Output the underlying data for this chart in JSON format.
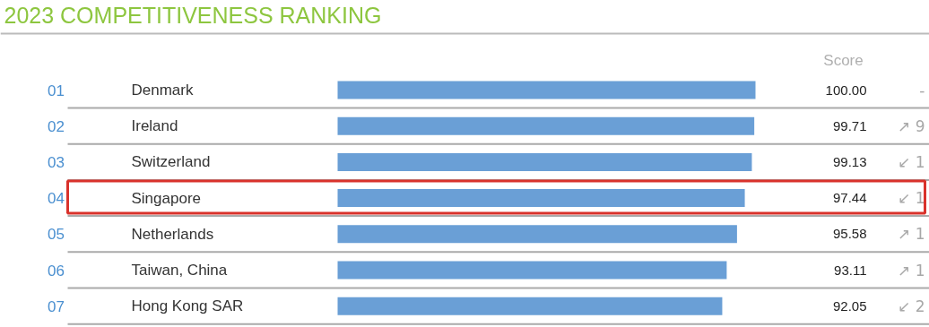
{
  "chart_data": {
    "type": "bar",
    "orientation": "horizontal",
    "title": "2023 COMPETITIVENESS RANKING",
    "categories": [
      "Denmark",
      "Ireland",
      "Switzerland",
      "Singapore",
      "Netherlands",
      "Taiwan, China",
      "Hong Kong SAR"
    ],
    "values": [
      100.0,
      99.71,
      99.13,
      97.44,
      95.58,
      93.11,
      92.05
    ],
    "value_labels": [
      "100.00",
      "99.71",
      "99.13",
      "97.44",
      "95.58",
      "93.11",
      "92.05"
    ],
    "color": "#6a9fd6",
    "annotations": [
      "Score",
      "01",
      "02",
      "03",
      "04",
      "05",
      "06",
      "07",
      "-",
      "↗ 9",
      "↙ 1",
      "↙ 1",
      "↗ 1",
      "↗ 1",
      "↙ 2"
    ]
  }
}
